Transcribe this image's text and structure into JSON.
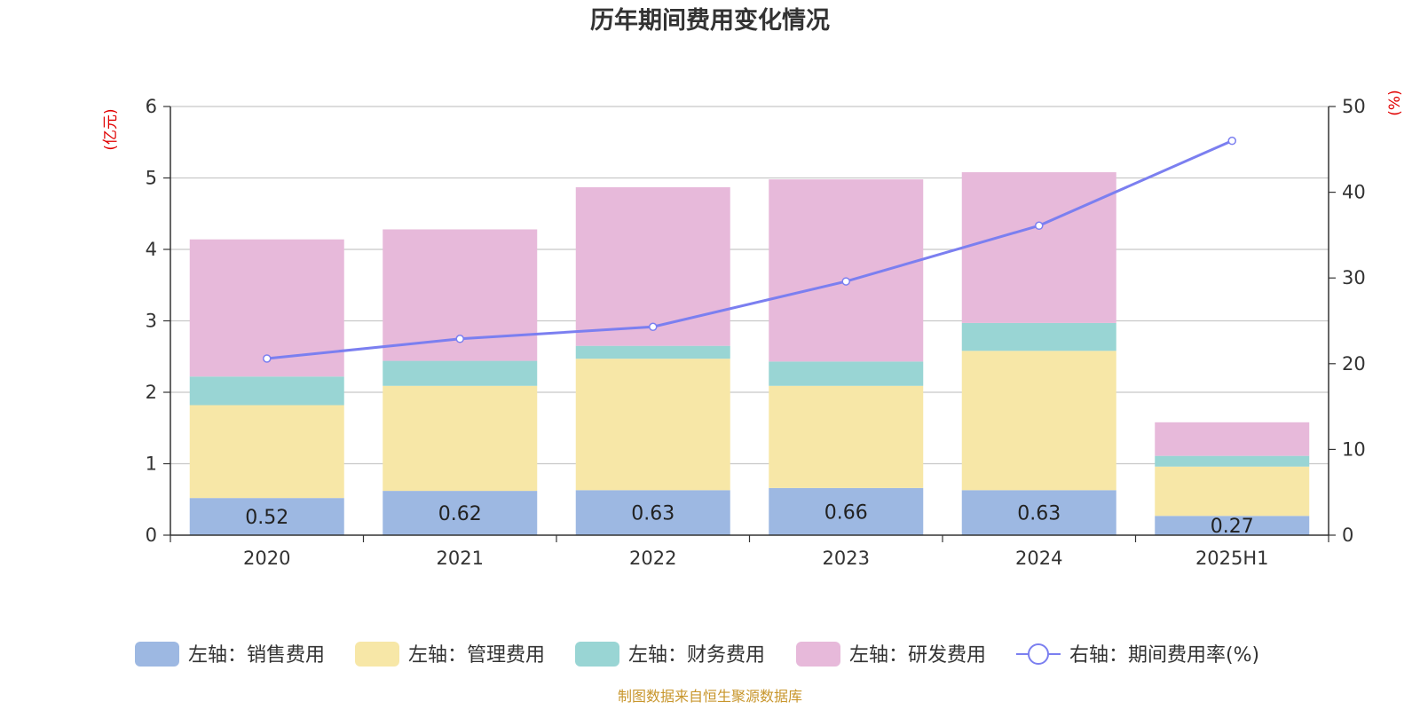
{
  "colors": {
    "sales": "#9db8e2",
    "admin": "#f7e7a7",
    "finance": "#99d5d4",
    "rnd": "#e7b9da",
    "line": "#7b7ff0",
    "unit": "#e00000",
    "source": "#c8962c"
  },
  "chart_data": {
    "type": "bar",
    "stacked": true,
    "title": "历年期间费用变化情况",
    "categories": [
      "2020",
      "2021",
      "2022",
      "2023",
      "2024",
      "2025H1"
    ],
    "left_axis": {
      "unit_label": "(亿元)",
      "ylim": [
        0,
        6
      ],
      "ticks": [
        "0",
        "1",
        "2",
        "3",
        "4",
        "5",
        "6"
      ]
    },
    "right_axis": {
      "unit_label": "(%)",
      "ylim": [
        0,
        50
      ],
      "ticks": [
        "0",
        "10",
        "20",
        "30",
        "40",
        "50"
      ]
    },
    "grid": true,
    "legend_position": "bottom",
    "series": [
      {
        "name": "左轴：销售费用",
        "axis": "left",
        "color": "#9db8e2",
        "values": [
          0.52,
          0.62,
          0.63,
          0.66,
          0.63,
          0.27
        ],
        "labels": [
          "0.52",
          "0.62",
          "0.63",
          "0.66",
          "0.63",
          "0.27"
        ]
      },
      {
        "name": "左轴：管理费用",
        "axis": "left",
        "color": "#f7e7a7",
        "values": [
          1.3,
          1.47,
          1.84,
          1.43,
          1.95,
          0.69
        ]
      },
      {
        "name": "左轴：财务费用",
        "axis": "left",
        "color": "#99d5d4",
        "values": [
          0.4,
          0.35,
          0.18,
          0.34,
          0.39,
          0.15
        ]
      },
      {
        "name": "左轴：研发费用",
        "axis": "left",
        "color": "#e7b9da",
        "values": [
          1.92,
          1.84,
          2.22,
          2.55,
          2.11,
          0.47
        ]
      },
      {
        "name": "右轴：期间费用率(%)",
        "axis": "right",
        "type": "line",
        "color": "#7b7ff0",
        "values": [
          20.6,
          22.9,
          24.3,
          29.6,
          36.1,
          46.0
        ]
      }
    ],
    "source": "制图数据来自恒生聚源数据库"
  }
}
